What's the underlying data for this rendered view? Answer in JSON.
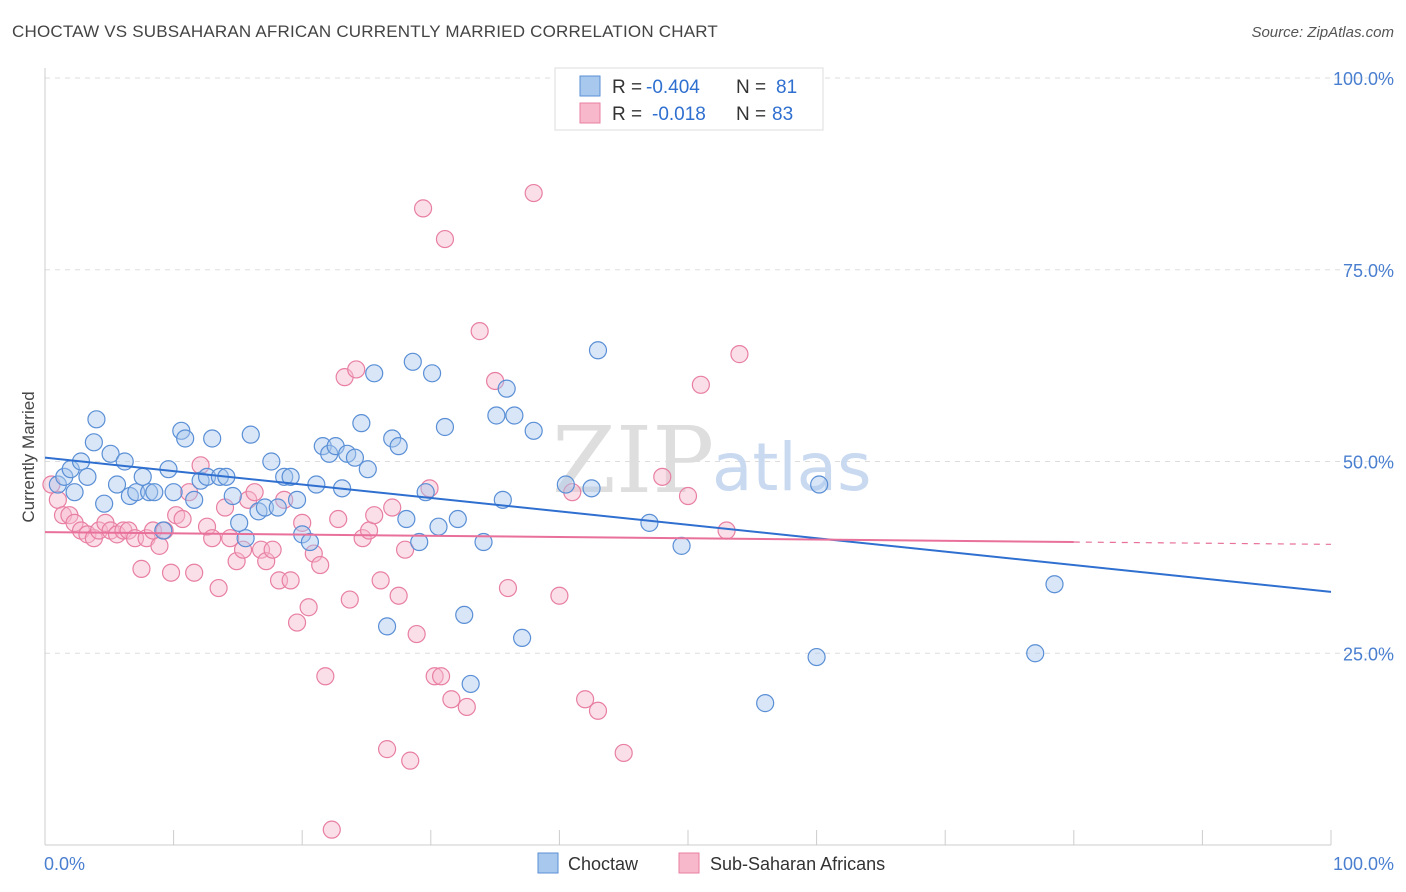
{
  "header": {
    "title": "CHOCTAW VS SUBSAHARAN AFRICAN CURRENTLY MARRIED CORRELATION CHART",
    "source": "Source: ZipAtlas.com"
  },
  "watermark": {
    "zip": "ZIP",
    "atlas": "atlas"
  },
  "legend": {
    "rows": [
      {
        "r_label": "R = ",
        "r_value": "-0.404",
        "n_label": "N = ",
        "n_value": "81",
        "color": "#a8c8ee"
      },
      {
        "r_label": "R = ",
        "r_value": "-0.018",
        "n_label": "N = ",
        "n_value": "83",
        "color": "#f7b8cc"
      }
    ]
  },
  "bottom_legend": {
    "items": [
      {
        "label": "Choctaw",
        "color": "#a8c8ee"
      },
      {
        "label": "Sub-Saharan Africans",
        "color": "#f7b8cc"
      }
    ]
  },
  "chart_data": {
    "type": "scatter",
    "title": "CHOCTAW VS SUBSAHARAN AFRICAN CURRENTLY MARRIED CORRELATION CHART",
    "xlabel": "",
    "ylabel": "Currently Married",
    "xlim": [
      0,
      100
    ],
    "ylim": [
      0,
      100
    ],
    "x_tick_labels": [
      "0.0%",
      "100.0%"
    ],
    "y_ticks": [
      25,
      50,
      75,
      100
    ],
    "y_tick_labels": [
      "25.0%",
      "50.0%",
      "75.0%",
      "100.0%"
    ],
    "grid": true,
    "series": [
      {
        "name": "Choctaw",
        "color": "#a8c8ee",
        "stroke": "#5a8fd6",
        "line_color": "#2f6fd0",
        "R": -0.404,
        "N": 81,
        "trend": {
          "x": [
            0,
            100
          ],
          "y": [
            50.5,
            33.0
          ]
        },
        "points": [
          [
            1,
            47
          ],
          [
            1.5,
            48
          ],
          [
            2,
            49
          ],
          [
            2.3,
            46
          ],
          [
            2.8,
            50
          ],
          [
            3.3,
            48
          ],
          [
            3.8,
            52.5
          ],
          [
            4,
            55.5
          ],
          [
            4.6,
            44.5
          ],
          [
            5.1,
            51
          ],
          [
            5.6,
            47
          ],
          [
            6.2,
            50
          ],
          [
            6.6,
            45.5
          ],
          [
            7.1,
            46
          ],
          [
            7.6,
            48
          ],
          [
            8.1,
            46
          ],
          [
            8.5,
            46
          ],
          [
            9.2,
            41
          ],
          [
            9.6,
            49
          ],
          [
            10,
            46
          ],
          [
            10.6,
            54
          ],
          [
            10.9,
            53
          ],
          [
            11.6,
            45
          ],
          [
            12.1,
            47.5
          ],
          [
            12.6,
            48
          ],
          [
            13,
            53
          ],
          [
            13.6,
            48
          ],
          [
            14.1,
            48
          ],
          [
            14.6,
            45.5
          ],
          [
            15.1,
            42
          ],
          [
            15.6,
            40
          ],
          [
            16,
            53.5
          ],
          [
            16.6,
            43.5
          ],
          [
            17.1,
            44
          ],
          [
            17.6,
            50
          ],
          [
            18.1,
            44
          ],
          [
            18.6,
            48
          ],
          [
            19.1,
            48
          ],
          [
            19.6,
            45
          ],
          [
            20,
            40.5
          ],
          [
            20.6,
            39.5
          ],
          [
            21.1,
            47
          ],
          [
            21.6,
            52
          ],
          [
            22.1,
            51
          ],
          [
            22.6,
            52
          ],
          [
            23.1,
            46.5
          ],
          [
            23.5,
            51
          ],
          [
            24.1,
            50.5
          ],
          [
            24.6,
            55
          ],
          [
            25.1,
            49
          ],
          [
            25.6,
            61.5
          ],
          [
            26.6,
            28.5
          ],
          [
            27,
            53
          ],
          [
            27.5,
            52
          ],
          [
            28.1,
            42.5
          ],
          [
            28.6,
            63
          ],
          [
            29.1,
            39.5
          ],
          [
            29.6,
            46
          ],
          [
            30.1,
            61.5
          ],
          [
            30.6,
            41.5
          ],
          [
            31.1,
            54.5
          ],
          [
            32.1,
            42.5
          ],
          [
            32.6,
            30
          ],
          [
            33.1,
            21
          ],
          [
            34.1,
            39.5
          ],
          [
            35.1,
            56
          ],
          [
            35.6,
            45
          ],
          [
            35.9,
            59.5
          ],
          [
            36.5,
            56
          ],
          [
            37.1,
            27
          ],
          [
            38,
            54
          ],
          [
            40.5,
            47
          ],
          [
            42.5,
            46.5
          ],
          [
            43,
            64.5
          ],
          [
            47,
            42
          ],
          [
            56,
            18.5
          ],
          [
            60,
            24.5
          ],
          [
            60.2,
            47
          ],
          [
            77,
            25
          ],
          [
            78.5,
            34
          ],
          [
            49.5,
            39
          ]
        ]
      },
      {
        "name": "Sub-Saharan Africans",
        "color": "#f7b8cc",
        "stroke": "#e87fa2",
        "line_color": "#e8709a",
        "R": -0.018,
        "N": 83,
        "trend": {
          "x": [
            0,
            80
          ],
          "y": [
            40.8,
            39.5
          ],
          "dash_x": [
            80,
            100
          ],
          "dash_y": [
            39.5,
            39.2
          ]
        },
        "points": [
          [
            0.5,
            47
          ],
          [
            1,
            45
          ],
          [
            1.4,
            43
          ],
          [
            1.9,
            43
          ],
          [
            2.3,
            42
          ],
          [
            2.8,
            41
          ],
          [
            3.3,
            40.5
          ],
          [
            3.8,
            40
          ],
          [
            4.2,
            41
          ],
          [
            4.7,
            42
          ],
          [
            5.1,
            41
          ],
          [
            5.6,
            40.5
          ],
          [
            6.1,
            41
          ],
          [
            6.5,
            41
          ],
          [
            7,
            40
          ],
          [
            7.5,
            36
          ],
          [
            7.9,
            40
          ],
          [
            8.4,
            41
          ],
          [
            8.9,
            39
          ],
          [
            9.3,
            41
          ],
          [
            9.8,
            35.5
          ],
          [
            10.2,
            43
          ],
          [
            10.7,
            42.5
          ],
          [
            11.2,
            46
          ],
          [
            11.6,
            35.5
          ],
          [
            12.1,
            49.5
          ],
          [
            12.6,
            41.5
          ],
          [
            13,
            40
          ],
          [
            13.5,
            33.5
          ],
          [
            14,
            44
          ],
          [
            14.4,
            40
          ],
          [
            14.9,
            37
          ],
          [
            15.4,
            38.5
          ],
          [
            15.8,
            45
          ],
          [
            16.3,
            46
          ],
          [
            16.8,
            38.5
          ],
          [
            17.2,
            37
          ],
          [
            17.7,
            38.5
          ],
          [
            18.2,
            34.5
          ],
          [
            18.6,
            45
          ],
          [
            19.1,
            34.5
          ],
          [
            19.6,
            29
          ],
          [
            20,
            42
          ],
          [
            20.5,
            31
          ],
          [
            20.9,
            38
          ],
          [
            21.4,
            36.5
          ],
          [
            21.8,
            22
          ],
          [
            22.3,
            2
          ],
          [
            22.8,
            42.5
          ],
          [
            23.3,
            61
          ],
          [
            23.7,
            32
          ],
          [
            24.2,
            62
          ],
          [
            24.7,
            40
          ],
          [
            25.2,
            41
          ],
          [
            25.6,
            43
          ],
          [
            26.1,
            34.5
          ],
          [
            26.6,
            12.5
          ],
          [
            27,
            44
          ],
          [
            27.5,
            32.5
          ],
          [
            28,
            38.5
          ],
          [
            28.4,
            11
          ],
          [
            28.9,
            27.5
          ],
          [
            29.4,
            83
          ],
          [
            29.9,
            46.5
          ],
          [
            30.3,
            22
          ],
          [
            30.8,
            22
          ],
          [
            31.1,
            79
          ],
          [
            31.6,
            19
          ],
          [
            32.8,
            18
          ],
          [
            33.8,
            67
          ],
          [
            35,
            60.5
          ],
          [
            36,
            33.5
          ],
          [
            38,
            85
          ],
          [
            40,
            32.5
          ],
          [
            41,
            46
          ],
          [
            42,
            19
          ],
          [
            43,
            17.5
          ],
          [
            45,
            12
          ],
          [
            48,
            48
          ],
          [
            50,
            45.5
          ],
          [
            51,
            60
          ],
          [
            53,
            41
          ],
          [
            54,
            64
          ]
        ]
      }
    ]
  }
}
